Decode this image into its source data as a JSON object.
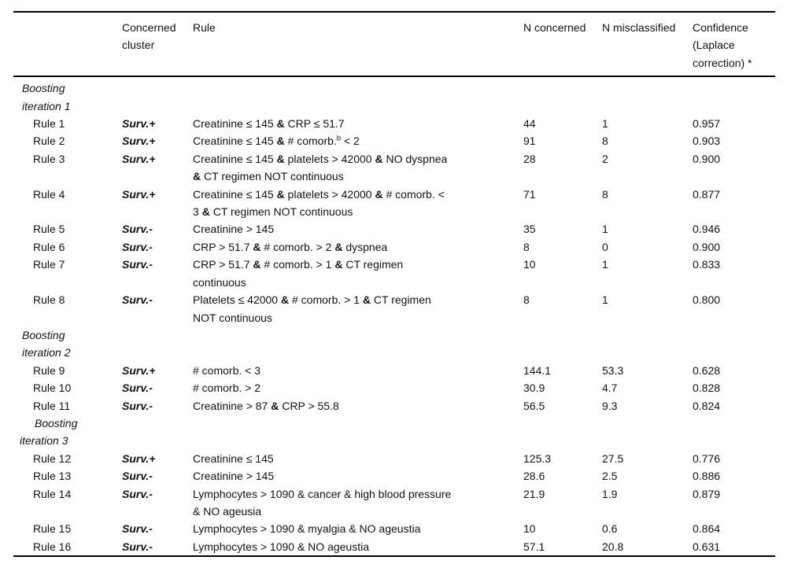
{
  "table": {
    "columns": {
      "row_label": "",
      "cluster": "Concerned cluster",
      "rule": "Rule",
      "n_concerned": "N concerned",
      "n_misclassified": "N misclassified",
      "confidence": "Confidence (Laplace correction) *"
    },
    "rows": [
      {
        "type": "section",
        "line1": "Boosting",
        "line2": "iteration 1",
        "variant": "normal"
      },
      {
        "type": "rule",
        "label": "Rule 1",
        "cluster": "Surv.+",
        "rule": "Creatinine ≤ 145 & CRP ≤ 51.7",
        "amp_bold": true,
        "n_concerned": "44",
        "n_misclassified": "1",
        "confidence": "0.957"
      },
      {
        "type": "rule",
        "label": "Rule 2",
        "cluster": "Surv.+",
        "rule": "Creatinine ≤ 145 & # comorb.^b < 2",
        "amp_bold": true,
        "n_concerned": "91",
        "n_misclassified": "8",
        "confidence": "0.903"
      },
      {
        "type": "rule",
        "label": "Rule 3",
        "cluster": "Surv.+",
        "rule": "Creatinine ≤ 145 & platelets > 42000 & NO dyspnea\n& CT regimen NOT continuous",
        "amp_bold": true,
        "n_concerned": "28",
        "n_misclassified": "2",
        "confidence": "0.900"
      },
      {
        "type": "rule",
        "label": "Rule 4",
        "cluster": "Surv.+",
        "rule": "Creatinine ≤ 145 & platelets > 42000 & # comorb. <\n3 & CT regimen NOT continuous",
        "amp_bold": true,
        "n_concerned": "71",
        "n_misclassified": "8",
        "confidence": "0.877"
      },
      {
        "type": "rule",
        "label": "Rule 5",
        "cluster": "Surv.-",
        "rule": "Creatinine > 145",
        "amp_bold": true,
        "n_concerned": "35",
        "n_misclassified": "1",
        "confidence": "0.946"
      },
      {
        "type": "rule",
        "label": "Rule 6",
        "cluster": "Surv.-",
        "rule": "CRP > 51.7 & # comorb. > 2 & dyspnea",
        "amp_bold": true,
        "n_concerned": "8",
        "n_misclassified": "0",
        "confidence": "0.900"
      },
      {
        "type": "rule",
        "label": "Rule 7",
        "cluster": "Surv.-",
        "rule": "CRP > 51.7 & # comorb. > 1 & CT regimen\ncontinuous",
        "amp_bold": true,
        "n_concerned": "10",
        "n_misclassified": "1",
        "confidence": "0.833"
      },
      {
        "type": "rule",
        "label": "Rule 8",
        "cluster": "Surv.-",
        "rule": "Platelets ≤ 42000 & # comorb. > 1 & CT regimen\nNOT continuous",
        "amp_bold": true,
        "n_concerned": "8",
        "n_misclassified": "1",
        "confidence": "0.800"
      },
      {
        "type": "section",
        "line1": "Boosting",
        "line2": "iteration 2",
        "variant": "normal"
      },
      {
        "type": "rule",
        "label": "Rule 9",
        "cluster": "Surv.+",
        "rule": "# comorb. < 3",
        "amp_bold": true,
        "n_concerned": "144.1",
        "n_misclassified": "53.3",
        "confidence": "0.628"
      },
      {
        "type": "rule",
        "label": "Rule 10",
        "cluster": "Surv.-",
        "rule": "# comorb. > 2",
        "amp_bold": true,
        "n_concerned": "30.9",
        "n_misclassified": "4.7",
        "confidence": "0.828"
      },
      {
        "type": "rule",
        "label": "Rule 11",
        "cluster": "Surv.-",
        "rule": "Creatinine > 87 & CRP > 55.8",
        "amp_bold": true,
        "n_concerned": "56.5",
        "n_misclassified": "9.3",
        "confidence": "0.824"
      },
      {
        "type": "section",
        "line1": "Boosting",
        "line2": "iteration 3",
        "variant": "indented"
      },
      {
        "type": "rule",
        "label": "Rule 12",
        "cluster": "Surv.+",
        "rule": "Creatinine ≤ 145",
        "amp_bold": false,
        "n_concerned": "125.3",
        "n_misclassified": "27.5",
        "confidence": "0.776"
      },
      {
        "type": "rule",
        "label": "Rule 13",
        "cluster": "Surv.-",
        "rule": "Creatinine > 145",
        "amp_bold": false,
        "n_concerned": "28.6",
        "n_misclassified": "2.5",
        "confidence": "0.886"
      },
      {
        "type": "rule",
        "label": "Rule 14",
        "cluster": "Surv.-",
        "rule": "Lymphocytes > 1090 & cancer & high blood pressure\n& NO ageusia",
        "amp_bold": false,
        "n_concerned": "21.9",
        "n_misclassified": "1.9",
        "confidence": "0.879"
      },
      {
        "type": "rule",
        "label": "Rule 15",
        "cluster": "Surv.-",
        "rule": "Lymphocytes > 1090 & myalgia & NO ageustia",
        "amp_bold": false,
        "n_concerned": "10",
        "n_misclassified": "0.6",
        "confidence": "0.864"
      },
      {
        "type": "rule",
        "label": "Rule 16",
        "cluster": "Surv.-",
        "rule": "Lymphocytes > 1090 & NO ageustia",
        "amp_bold": false,
        "n_concerned": "57.1",
        "n_misclassified": "20.8",
        "confidence": "0.631"
      }
    ]
  }
}
